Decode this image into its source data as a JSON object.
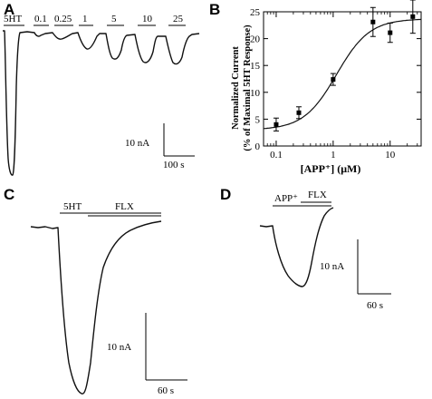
{
  "panels": {
    "A": {
      "letter": "A",
      "stim_labels": [
        "5HT",
        "0.1",
        "0.25",
        "1",
        "5",
        "10",
        "25"
      ],
      "scale": {
        "y": "10 nA",
        "x": "100 s"
      }
    },
    "B": {
      "letter": "B",
      "ylabel_line1": "Normalized Current",
      "ylabel_line2": "(% of Maximal 5HT Response)",
      "xlabel": "[APP⁺] (μM)",
      "yticks": [
        "0",
        "5",
        "10",
        "15",
        "20",
        "25"
      ],
      "xticks": [
        "0.1",
        "1",
        "10"
      ]
    },
    "C": {
      "letter": "C",
      "stim_labels": [
        "5HT",
        "FLX"
      ],
      "scale": {
        "y": "10 nA",
        "x": "60 s"
      }
    },
    "D": {
      "letter": "D",
      "stim_labels": [
        "APP⁺",
        "FLX"
      ],
      "scale": {
        "y": "10 nA",
        "x": "60 s"
      }
    }
  },
  "chart_data": [
    {
      "type": "line",
      "panel": "A",
      "stimuli": [
        "5HT",
        "0.1",
        "0.25",
        "1",
        "5",
        "10",
        "25"
      ],
      "scale_bars": {
        "current": "10 nA",
        "time": "100 s"
      }
    },
    {
      "type": "scatter",
      "panel": "B",
      "xlabel": "[APP⁺] (μM)",
      "ylabel": "Normalized Current (% of Maximal 5HT Response)",
      "xscale": "log",
      "xlim": [
        0.06,
        35
      ],
      "ylim": [
        0,
        25
      ],
      "x": [
        0.1,
        0.25,
        1,
        5,
        10,
        25
      ],
      "y": [
        4.0,
        6.2,
        12.4,
        23.1,
        21.1,
        24.1
      ],
      "yerr": [
        1.2,
        1.1,
        1.1,
        2.7,
        1.8,
        3.1
      ],
      "fit": {
        "kind": "sigmoid",
        "bottom": 3.0,
        "top": 23.7,
        "ec50": 1.15,
        "hill": 1.5
      }
    },
    {
      "type": "line",
      "panel": "C",
      "stimuli": [
        "5HT",
        "FLX"
      ],
      "scale_bars": {
        "current": "10 nA",
        "time": "60 s"
      }
    },
    {
      "type": "line",
      "panel": "D",
      "stimuli": [
        "APP⁺",
        "FLX"
      ],
      "scale_bars": {
        "current": "10 nA",
        "time": "60 s"
      }
    }
  ]
}
